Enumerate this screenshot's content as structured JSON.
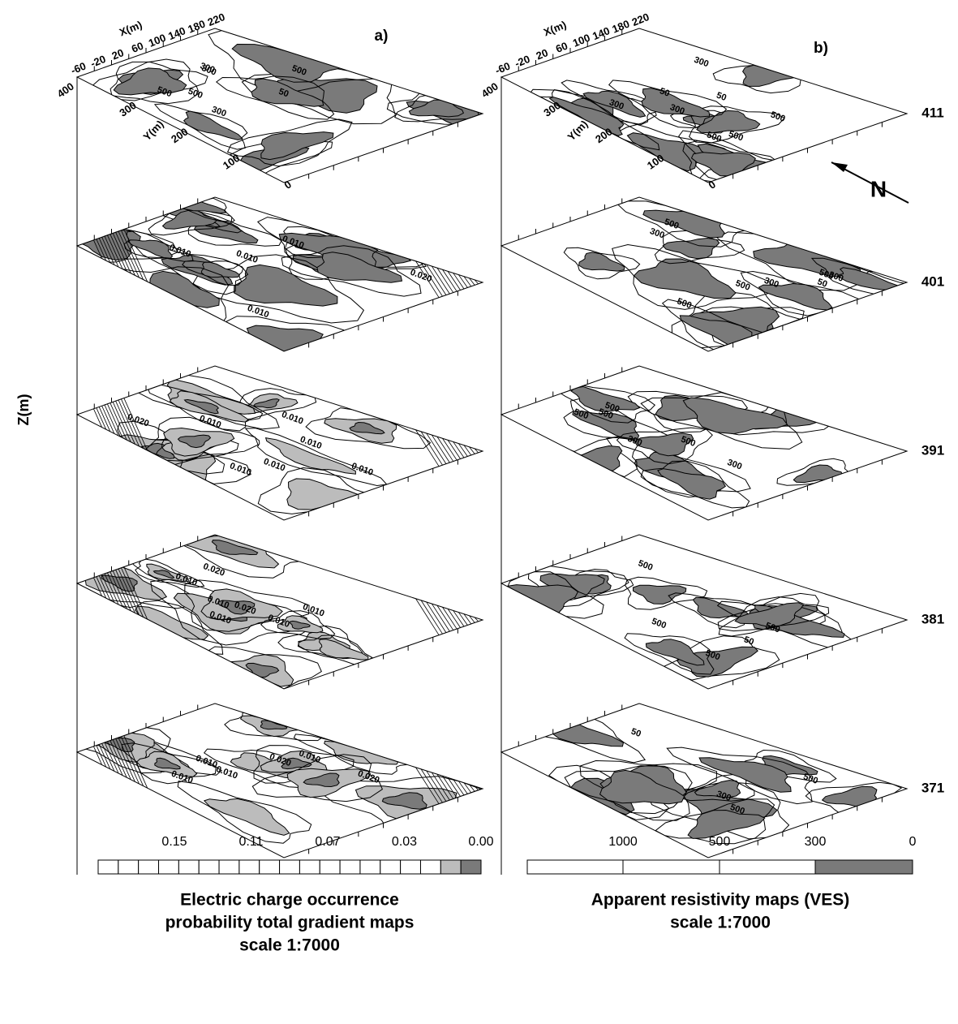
{
  "panels": [
    {
      "label": "a)",
      "legend": {
        "ticks": [
          "0.15",
          "0.11",
          "0.07",
          "0.03",
          "0.00"
        ],
        "caption": [
          "Electric charge occurrence",
          "probability total gradient maps",
          "scale 1:7000"
        ]
      },
      "contour_labels": [
        [
          "500",
          "50",
          "500",
          "300",
          "300",
          "500",
          "300"
        ],
        [
          "0.010",
          "0.010",
          "0.010",
          "0.020",
          "0.010"
        ],
        [
          "0.010",
          "0.010",
          "0.010",
          "0.010",
          "0.010",
          "0.020",
          "0.010"
        ],
        [
          "0.010",
          "0.020",
          "0.010",
          "0.010",
          "0.010",
          "0.020",
          "0.010"
        ],
        [
          "0.020",
          "0.020",
          "0.010",
          "0.010",
          "0.010",
          "0.010"
        ]
      ]
    },
    {
      "label": "b)",
      "legend": {
        "ticks": [
          "1000",
          "500",
          "300",
          "0"
        ],
        "caption": [
          "Apparent resistivity maps (VES)",
          "scale 1:7000"
        ]
      },
      "contour_labels": [
        [
          "300",
          "50",
          "500",
          "50",
          "300",
          "500",
          "300",
          "500"
        ],
        [
          "500",
          "50",
          "500",
          "300",
          "500",
          "300",
          "500",
          "300"
        ],
        [
          "500",
          "500",
          "500",
          "300",
          "500",
          "300"
        ],
        [
          "50",
          "500",
          "500",
          "500",
          "500"
        ],
        [
          "50",
          "500",
          "500",
          "300"
        ]
      ]
    }
  ],
  "axes": {
    "z_label": "Z(m)",
    "x_label": "X(m)",
    "y_label": "Y(m)",
    "x_ticks": [
      "-60",
      "-20",
      "20",
      "60",
      "100",
      "140",
      "180",
      "220"
    ],
    "y_ticks": [
      "400",
      "300",
      "200",
      "100",
      "0"
    ]
  },
  "depths": [
    "411",
    "401",
    "391",
    "381",
    "371"
  ],
  "north": "N"
}
